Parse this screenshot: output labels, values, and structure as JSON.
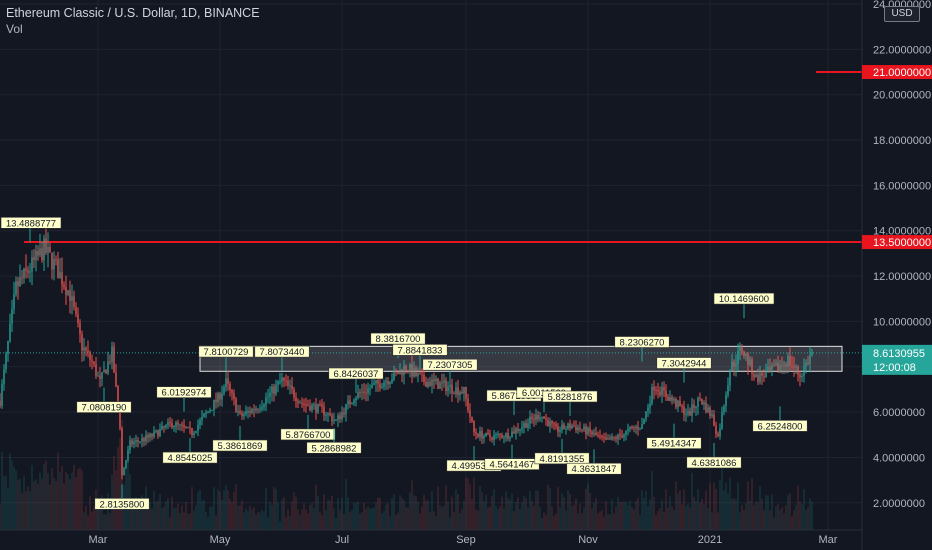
{
  "header": {
    "title": "Ethereum Classic / U.S. Dollar, 1D, BINANCE",
    "indicator": "Vol",
    "currency_button": "USD"
  },
  "colors": {
    "background": "#131722",
    "grid": "#1f2330",
    "axis_text": "#b2b5be",
    "up": "#26a69a",
    "down": "#ef5350",
    "level_line": "#e8141e",
    "label_bg": "#ffffcc",
    "box_fill": "#d8d8d8",
    "current_price_bg": "#26a69a"
  },
  "chart_data": {
    "type": "candlestick",
    "title": "Ethereum Classic / U.S. Dollar, 1D, BINANCE",
    "ylim": [
      0.8,
      24.0
    ],
    "yticks": [
      "24.0000000",
      "22.0000000",
      "20.0000000",
      "18.0000000",
      "16.0000000",
      "14.0000000",
      "12.0000000",
      "10.0000000",
      "8.0000000",
      "6.0000000",
      "4.0000000",
      "2.0000000"
    ],
    "xticks": [
      "Mar",
      "May",
      "Jul",
      "Sep",
      "Nov",
      "2021",
      "Mar"
    ],
    "x_range": [
      "2020-01-12",
      "2021-03-18"
    ],
    "xtick_dates": [
      "2020-03-01",
      "2020-05-01",
      "2020-07-01",
      "2020-09-01",
      "2020-11-01",
      "2021-01-01",
      "2021-03-01"
    ],
    "price_path": [
      [
        "2020-01-12",
        6.5
      ],
      [
        "2020-01-20",
        11.5
      ],
      [
        "2020-02-03",
        13.2
      ],
      [
        "2020-02-09",
        12.4
      ],
      [
        "2020-02-16",
        11.2
      ],
      [
        "2020-02-22",
        8.9
      ],
      [
        "2020-02-27",
        8.2
      ],
      [
        "2020-03-02",
        7.3
      ],
      [
        "2020-03-08",
        8.6
      ],
      [
        "2020-03-12",
        5.4
      ],
      [
        "2020-03-13",
        3.2
      ],
      [
        "2020-03-17",
        4.6
      ],
      [
        "2020-03-27",
        4.9
      ],
      [
        "2020-04-07",
        5.5
      ],
      [
        "2020-04-17",
        5.1
      ],
      [
        "2020-04-30",
        6.6
      ],
      [
        "2020-05-04",
        7.3
      ],
      [
        "2020-05-11",
        5.8
      ],
      [
        "2020-05-21",
        6.3
      ],
      [
        "2020-06-01",
        7.4
      ],
      [
        "2020-06-11",
        6.4
      ],
      [
        "2020-06-21",
        6.1
      ],
      [
        "2020-06-28",
        5.6
      ],
      [
        "2020-07-07",
        6.7
      ],
      [
        "2020-07-16",
        7.1
      ],
      [
        "2020-07-27",
        7.6
      ],
      [
        "2020-08-02",
        8.0
      ],
      [
        "2020-08-10",
        7.4
      ],
      [
        "2020-08-20",
        7.2
      ],
      [
        "2020-08-31",
        6.9
      ],
      [
        "2020-09-05",
        5.1
      ],
      [
        "2020-09-12",
        4.9
      ],
      [
        "2020-09-22",
        5.0
      ],
      [
        "2020-10-01",
        5.5
      ],
      [
        "2020-10-08",
        5.9
      ],
      [
        "2020-10-16",
        5.2
      ],
      [
        "2020-10-24",
        5.4
      ],
      [
        "2020-11-02",
        5.1
      ],
      [
        "2020-11-10",
        4.7
      ],
      [
        "2020-11-16",
        4.9
      ],
      [
        "2020-11-24",
        5.3
      ],
      [
        "2020-11-28",
        5.4
      ],
      [
        "2020-12-04",
        7.2
      ],
      [
        "2020-12-12",
        6.6
      ],
      [
        "2020-12-21",
        5.9
      ],
      [
        "2020-12-27",
        6.6
      ],
      [
        "2021-01-02",
        5.8
      ],
      [
        "2021-01-05",
        4.9
      ],
      [
        "2021-01-11",
        7.9
      ],
      [
        "2021-01-17",
        8.8
      ],
      [
        "2021-01-24",
        7.5
      ],
      [
        "2021-02-01",
        7.8
      ],
      [
        "2021-02-09",
        8.3
      ],
      [
        "2021-02-15",
        7.6
      ],
      [
        "2021-02-21",
        8.61
      ]
    ],
    "annotations": [
      {
        "date": "2020-01-27",
        "price": 13.4888777,
        "text": "13.4888777",
        "kind": "high"
      },
      {
        "date": "2020-03-04",
        "price": 7.080819,
        "text": "7.0808190",
        "kind": "low"
      },
      {
        "date": "2020-03-13",
        "price": 2.81358,
        "text": "2.8135800",
        "kind": "low"
      },
      {
        "date": "2020-04-13",
        "price": 6.0192974,
        "text": "6.0192974",
        "kind": "high"
      },
      {
        "date": "2020-04-16",
        "price": 4.8545025,
        "text": "4.8545025",
        "kind": "low"
      },
      {
        "date": "2020-05-04",
        "price": 7.8100729,
        "text": "7.8100729",
        "kind": "high"
      },
      {
        "date": "2020-05-11",
        "price": 5.3861869,
        "text": "5.3861869",
        "kind": "low"
      },
      {
        "date": "2020-06-01",
        "price": 7.807344,
        "text": "7.8073440",
        "kind": "high"
      },
      {
        "date": "2020-06-14",
        "price": 5.87667,
        "text": "5.8766700",
        "kind": "low"
      },
      {
        "date": "2020-06-27",
        "price": 5.2868982,
        "text": "5.2868982",
        "kind": "low"
      },
      {
        "date": "2020-07-08",
        "price": 6.8426037,
        "text": "6.8426037",
        "kind": "high"
      },
      {
        "date": "2020-07-29",
        "price": 8.38167,
        "text": "8.3816700",
        "kind": "high"
      },
      {
        "date": "2020-08-09",
        "price": 7.8841833,
        "text": "7.8841833",
        "kind": "high"
      },
      {
        "date": "2020-08-24",
        "price": 7.2307305,
        "text": "7.2307305",
        "kind": "high"
      },
      {
        "date": "2020-09-05",
        "price": 4.49953,
        "text": "4.4995300",
        "kind": "low"
      },
      {
        "date": "2020-09-24",
        "price": 4.5641467,
        "text": "4.5641467",
        "kind": "low"
      },
      {
        "date": "2020-09-25",
        "price": 5.8671956,
        "text": "5.8671956",
        "kind": "high"
      },
      {
        "date": "2020-10-10",
        "price": 6.0011529,
        "text": "6.0011529",
        "kind": "high"
      },
      {
        "date": "2020-10-23",
        "price": 5.8281876,
        "text": "5.8281876",
        "kind": "high"
      },
      {
        "date": "2020-10-19",
        "price": 4.8191355,
        "text": "4.8191355",
        "kind": "low"
      },
      {
        "date": "2020-11-04",
        "price": 4.3631847,
        "text": "4.3631847",
        "kind": "low"
      },
      {
        "date": "2020-11-28",
        "price": 8.230627,
        "text": "8.2306270",
        "kind": "high"
      },
      {
        "date": "2020-12-19",
        "price": 7.3042944,
        "text": "7.3042944",
        "kind": "high"
      },
      {
        "date": "2020-12-14",
        "price": 5.4914347,
        "text": "5.4914347",
        "kind": "low"
      },
      {
        "date": "2021-01-03",
        "price": 4.6381086,
        "text": "4.6381086",
        "kind": "low"
      },
      {
        "date": "2021-01-18",
        "price": 10.14696,
        "text": "10.1469600",
        "kind": "high"
      },
      {
        "date": "2021-02-05",
        "price": 6.25248,
        "text": "6.2524800",
        "kind": "low"
      }
    ],
    "horizontal_levels": [
      {
        "price": 13.5,
        "label": "13.5000000",
        "from_date": "2020-01-24"
      },
      {
        "price": 21.0,
        "label": "21.0000000",
        "from_date": "2021-02-23"
      }
    ],
    "zone": {
      "from_date": "2020-04-21",
      "to_date": "2021-03-08",
      "low": 7.8,
      "high": 8.9
    },
    "current_price": {
      "price": 8.6130955,
      "label": "8.6130955",
      "countdown": "12:00:08"
    }
  }
}
